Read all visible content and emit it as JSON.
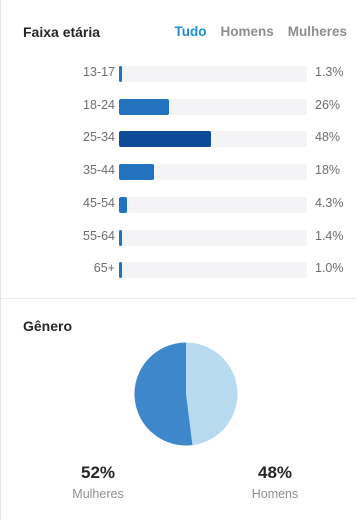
{
  "age_section": {
    "title": "Faixa etária",
    "tabs": [
      {
        "label": "Tudo",
        "active": true
      },
      {
        "label": "Homens",
        "active": false
      },
      {
        "label": "Mulheres",
        "active": false
      }
    ]
  },
  "gender_section": {
    "title": "Gênero"
  },
  "colors": {
    "bar": "#2272bf",
    "bar_max": "#0e4b96",
    "women": "#3d87ca",
    "men": "#b8daf1",
    "accent": "#1b8fd3"
  },
  "chart_data": [
    {
      "type": "bar",
      "orientation": "horizontal",
      "title": "Faixa etária",
      "categories": [
        "13-17",
        "18-24",
        "25-34",
        "35-44",
        "45-54",
        "55-64",
        "65+"
      ],
      "values": [
        1.3,
        26,
        48,
        18,
        4.3,
        1.4,
        1.0
      ],
      "value_labels": [
        "1.3%",
        "26%",
        "48%",
        "18%",
        "4.3%",
        "1.4%",
        "1.0%"
      ],
      "unit": "%",
      "xlim": [
        0,
        100
      ],
      "grid": false
    },
    {
      "type": "pie",
      "title": "Gênero",
      "categories": [
        "Mulheres",
        "Homens"
      ],
      "values": [
        52,
        48
      ],
      "value_labels": [
        "52%",
        "48%"
      ],
      "unit": "%",
      "legend": "bottom"
    }
  ]
}
